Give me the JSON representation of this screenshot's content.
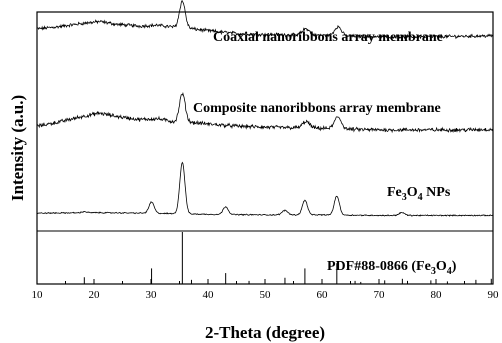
{
  "chart_data": {
    "type": "line",
    "xlabel": "2-Theta (degree)",
    "ylabel": "Intensity (a.u.)",
    "xlim": [
      10,
      90
    ],
    "x_ticks": [
      10,
      20,
      30,
      40,
      50,
      60,
      70,
      80,
      90
    ],
    "grid": false,
    "series": [
      {
        "name": "Coaxial nanoribbons array membrane",
        "baseline": 0.88,
        "noise": 0.028,
        "points": [
          [
            10,
            0.72
          ],
          [
            14,
            0.77
          ],
          [
            18,
            0.84
          ],
          [
            21,
            0.88
          ],
          [
            24,
            0.82
          ],
          [
            28,
            0.78
          ],
          [
            31,
            0.8
          ],
          [
            34,
            0.76
          ],
          [
            36,
            0.74
          ],
          [
            40,
            0.68
          ],
          [
            45,
            0.62
          ],
          [
            50,
            0.6
          ],
          [
            55,
            0.59
          ],
          [
            60,
            0.58
          ],
          [
            65,
            0.56
          ],
          [
            70,
            0.55
          ],
          [
            75,
            0.55
          ],
          [
            80,
            0.55
          ],
          [
            85,
            0.56
          ],
          [
            90,
            0.57
          ]
        ],
        "peaks": [
          [
            35.5,
            0.58,
            0.5
          ],
          [
            57.2,
            0.14,
            0.6
          ],
          [
            62.8,
            0.2,
            0.6
          ]
        ]
      },
      {
        "name": "Composite nanoribbons array membrane",
        "baseline": 0.36,
        "noise": 0.028,
        "points": [
          [
            10,
            0.22
          ],
          [
            14,
            0.3
          ],
          [
            18,
            0.4
          ],
          [
            21,
            0.46
          ],
          [
            24,
            0.4
          ],
          [
            28,
            0.34
          ],
          [
            31,
            0.36
          ],
          [
            34,
            0.3
          ],
          [
            36,
            0.3
          ],
          [
            40,
            0.26
          ],
          [
            45,
            0.22
          ],
          [
            50,
            0.2
          ],
          [
            55,
            0.19
          ],
          [
            60,
            0.18
          ],
          [
            65,
            0.16
          ],
          [
            70,
            0.15
          ],
          [
            75,
            0.15
          ],
          [
            80,
            0.15
          ],
          [
            85,
            0.15
          ],
          [
            90,
            0.16
          ]
        ],
        "peaks": [
          [
            35.5,
            0.52,
            0.5
          ],
          [
            57.2,
            0.12,
            0.6
          ],
          [
            62.8,
            0.22,
            0.6
          ]
        ]
      },
      {
        "name": "Fe3O4 NPs",
        "baseline": 0.0,
        "noise": 0.008,
        "points": [
          [
            10,
            0.05
          ],
          [
            20,
            0.06
          ],
          [
            30,
            0.05
          ],
          [
            40,
            0.03
          ],
          [
            50,
            0.02
          ],
          [
            60,
            0.02
          ],
          [
            70,
            0.01
          ],
          [
            80,
            0.01
          ],
          [
            90,
            0.01
          ]
        ],
        "peaks": [
          [
            18.3,
            0.02,
            0.4
          ],
          [
            30.1,
            0.2,
            0.45
          ],
          [
            35.5,
            0.92,
            0.45
          ],
          [
            43.1,
            0.14,
            0.45
          ],
          [
            53.5,
            0.08,
            0.5
          ],
          [
            57.0,
            0.26,
            0.45
          ],
          [
            62.6,
            0.34,
            0.45
          ],
          [
            74.0,
            0.05,
            0.5
          ]
        ]
      }
    ],
    "reference": {
      "name": "PDF#88-0866 (Fe3O4)",
      "lines": [
        [
          18.3,
          0.13
        ],
        [
          30.1,
          0.3
        ],
        [
          35.5,
          1.0
        ],
        [
          37.1,
          0.08
        ],
        [
          43.1,
          0.21
        ],
        [
          47.2,
          0.06
        ],
        [
          53.5,
          0.12
        ],
        [
          57.0,
          0.3
        ],
        [
          62.6,
          0.4
        ],
        [
          65.8,
          0.06
        ],
        [
          66.8,
          0.04
        ],
        [
          71.0,
          0.07
        ],
        [
          74.1,
          0.1
        ],
        [
          75.0,
          0.06
        ],
        [
          79.1,
          0.07
        ],
        [
          82.0,
          0.05
        ],
        [
          87.0,
          0.08
        ],
        [
          89.7,
          0.1
        ]
      ]
    }
  },
  "labels": {
    "coaxial": "Coaxial nanoribbons array membrane",
    "composite": "Composite nanoribbons array membrane",
    "fe_main": "Fe",
    "fe_sub": "3",
    "fe_o": "O",
    "fe_osub": "4",
    "fe_tail": " NPs",
    "pdf_main": "PDF#88-0866 (Fe",
    "pdf_sub1": "3",
    "pdf_o": "O",
    "pdf_sub2": "4",
    "pdf_tail": ")"
  }
}
